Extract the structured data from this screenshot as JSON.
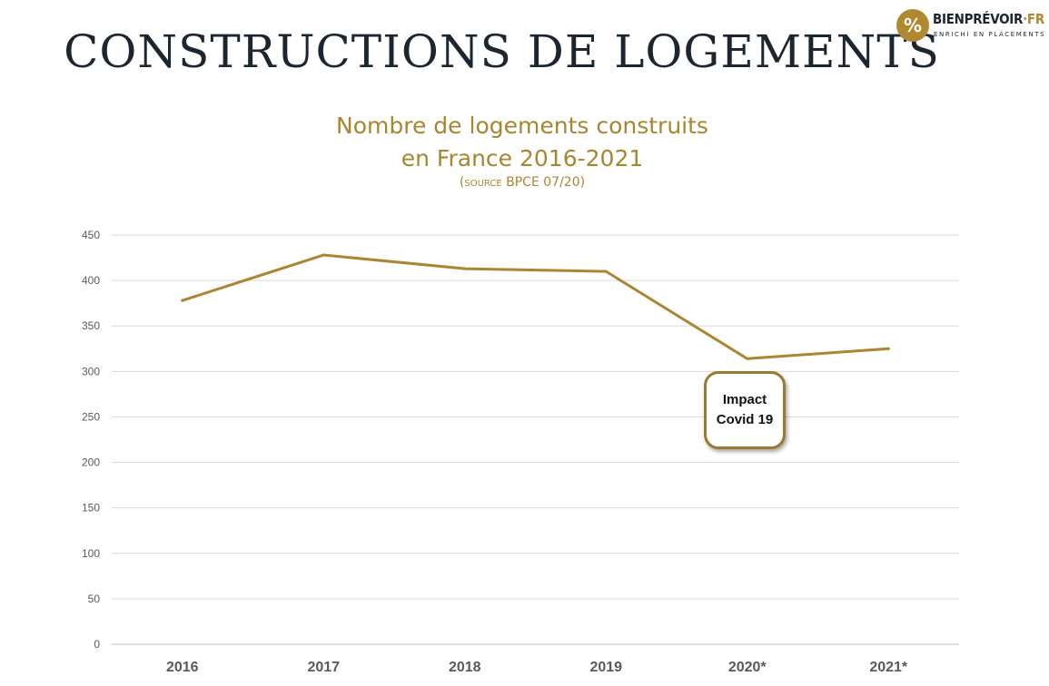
{
  "page": {
    "title": "CONSTRUCTIONS DE LOGEMENTS"
  },
  "logo": {
    "name": "BIENPRÉVOIR",
    "domain": "·FR",
    "tagline": "ENRICHI EN PLACEMENTS",
    "badge_symbol": "%"
  },
  "annotation": {
    "line1": "Impact",
    "line2": "Covid 19"
  },
  "colors": {
    "accent": "#a8852f",
    "line": "#ac8532",
    "title": "#1c2631",
    "grid": "#d9d9d9"
  },
  "chart_data": {
    "type": "line",
    "title_line1": "Nombre de logements construits",
    "title_line2": "en France 2016-2021",
    "source_open": "(",
    "source_word": "source",
    "source_rest": " BPCE 07/20)",
    "categories": [
      "2016",
      "2017",
      "2018",
      "2019",
      "2020*",
      "2021*"
    ],
    "values": [
      378,
      428,
      413,
      410,
      314,
      325
    ],
    "ylim": [
      0,
      450
    ],
    "yticks": [
      0,
      50,
      100,
      150,
      200,
      250,
      300,
      350,
      400,
      450
    ],
    "grid": true,
    "legend": "none"
  }
}
